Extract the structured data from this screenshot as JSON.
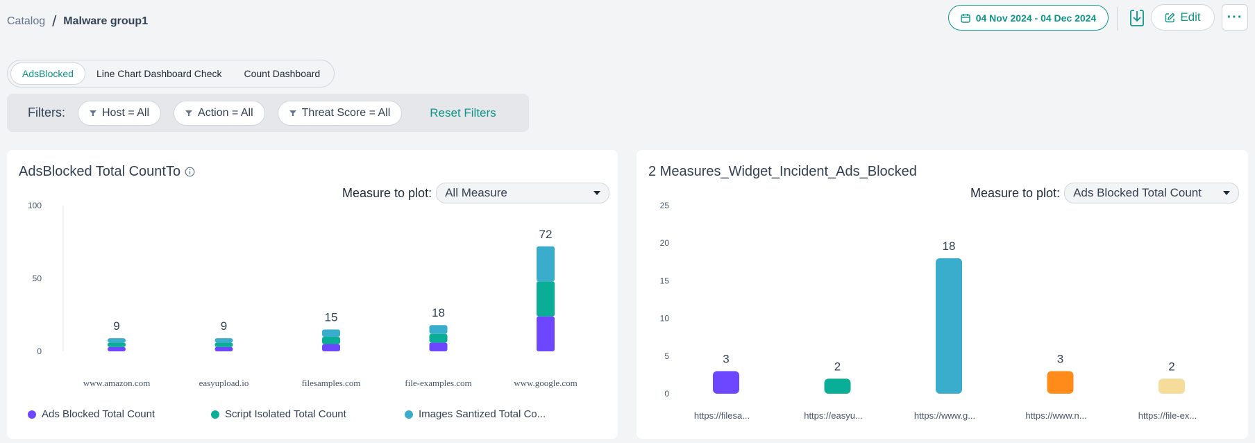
{
  "breadcrumb": {
    "parent": "Catalog",
    "separator": "/",
    "current": "Malware group1"
  },
  "header": {
    "date_range": "04 Nov 2024 - 04 Dec 2024",
    "edit_label": "Edit",
    "more_label": "···"
  },
  "tabs": [
    {
      "label": "AdsBlocked",
      "active": true
    },
    {
      "label": "Line Chart Dashboard Check",
      "active": false
    },
    {
      "label": "Count Dashboard",
      "active": false
    }
  ],
  "filters": {
    "label": "Filters:",
    "chips": [
      "Host = All",
      "Action = All",
      "Threat Score = All"
    ],
    "reset_label": "Reset Filters"
  },
  "colors": {
    "accent": "#0f9488",
    "series_purple": "#6c47ff",
    "series_teal": "#0aae96",
    "series_blue": "#3aaccc",
    "orange": "#ff8c1a",
    "wheat": "#f5dc9a"
  },
  "left_card": {
    "title": "AdsBlocked Total CountTo",
    "measure_label": "Measure to plot:",
    "measure_value": "All Measure",
    "legend": [
      "Ads Blocked Total Count",
      "Script Isolated Total Count",
      "Images Santized Total Co..."
    ]
  },
  "right_card": {
    "title": "2 Measures_Widget_Incident_Ads_Blocked",
    "measure_label": "Measure to plot:",
    "measure_value": "Ads Blocked Total Count"
  },
  "chart_data": [
    {
      "type": "bar",
      "stacked": true,
      "categories": [
        "www.amazon.com",
        "easyupload.io",
        "filesamples.com",
        "file-examples.com",
        "www.google.com"
      ],
      "series": [
        {
          "name": "Ads Blocked Total Count",
          "color": "#6c47ff",
          "values": [
            3,
            3,
            5,
            6,
            24
          ]
        },
        {
          "name": "Script Isolated Total Count",
          "color": "#0aae96",
          "values": [
            3,
            3,
            5,
            6,
            24
          ]
        },
        {
          "name": "Images Santized Total Co...",
          "color": "#3aaccc",
          "values": [
            3,
            3,
            5,
            6,
            24
          ]
        }
      ],
      "totals": [
        9,
        9,
        15,
        18,
        72
      ],
      "yticks": [
        0,
        50,
        100
      ],
      "ylim": [
        0,
        100
      ],
      "legend_position": "bottom"
    },
    {
      "type": "bar",
      "categories": [
        "https://filesa...",
        "https://easyu...",
        "https://www.g...",
        "https://www.n...",
        "https://file-ex..."
      ],
      "values": [
        3,
        2,
        18,
        3,
        2
      ],
      "colors": [
        "#6c47ff",
        "#0aae96",
        "#3aaccc",
        "#ff8c1a",
        "#f5dc9a"
      ],
      "yticks": [
        0,
        5,
        10,
        15,
        20,
        25
      ],
      "ylim": [
        0,
        25
      ]
    }
  ]
}
